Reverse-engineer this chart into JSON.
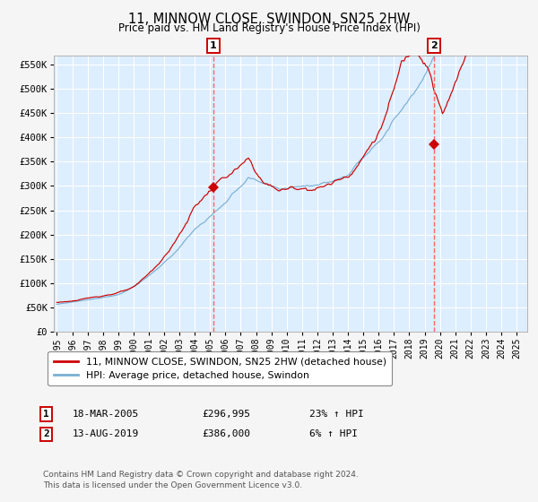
{
  "title": "11, MINNOW CLOSE, SWINDON, SN25 2HW",
  "subtitle": "Price paid vs. HM Land Registry's House Price Index (HPI)",
  "ylim": [
    0,
    570000
  ],
  "yticks": [
    0,
    50000,
    100000,
    150000,
    200000,
    250000,
    300000,
    350000,
    400000,
    450000,
    500000,
    550000
  ],
  "ytick_labels": [
    "£0",
    "£50K",
    "£100K",
    "£150K",
    "£200K",
    "£250K",
    "£300K",
    "£350K",
    "£400K",
    "£450K",
    "£500K",
    "£550K"
  ],
  "plot_bg_color": "#ddeeff",
  "grid_color": "#ffffff",
  "fig_bg_color": "#f5f5f5",
  "red_line_color": "#cc0000",
  "blue_line_color": "#7ab0d4",
  "marker_color": "#cc0000",
  "vline_color": "#ff6666",
  "legend_label_red": "11, MINNOW CLOSE, SWINDON, SN25 2HW (detached house)",
  "legend_label_blue": "HPI: Average price, detached house, Swindon",
  "annotation1_date": "18-MAR-2005",
  "annotation1_price": "£296,995",
  "annotation1_hpi": "23% ↑ HPI",
  "annotation1_year": 2005.21,
  "annotation1_value": 296995,
  "annotation2_date": "13-AUG-2019",
  "annotation2_price": "£386,000",
  "annotation2_hpi": "6% ↑ HPI",
  "annotation2_year": 2019.62,
  "annotation2_value": 386000,
  "footer": "Contains HM Land Registry data © Crown copyright and database right 2024.\nThis data is licensed under the Open Government Licence v3.0.",
  "xstart": 1995,
  "xend": 2025
}
